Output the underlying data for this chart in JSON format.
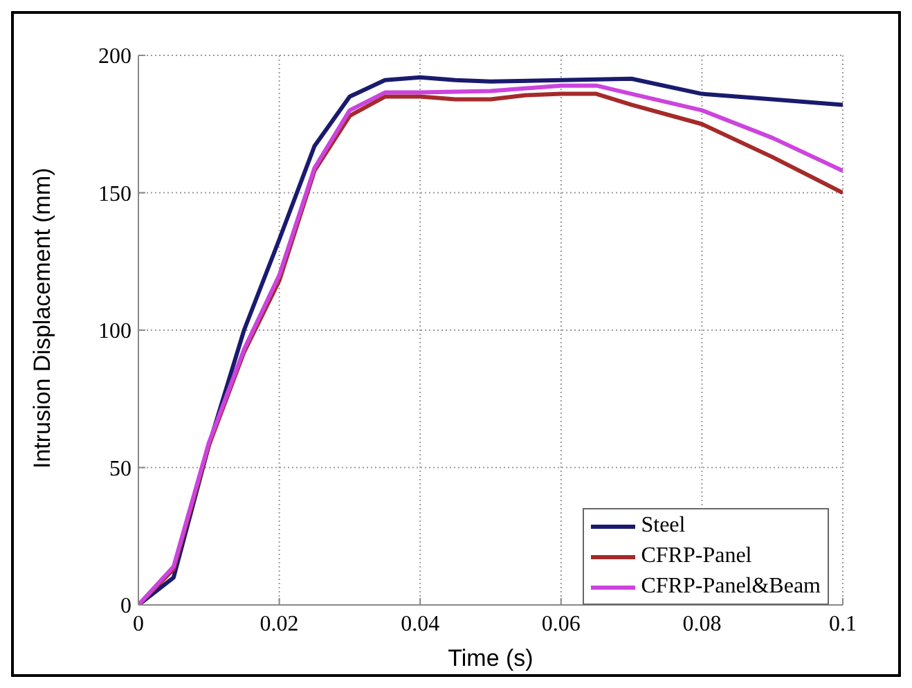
{
  "chart_data": {
    "type": "line",
    "xlabel": "Time (s)",
    "ylabel": "Intrusion Displacement (mm)",
    "xlim": [
      0,
      0.1
    ],
    "xticks": [
      0,
      0.02,
      0.04,
      0.06,
      0.08,
      0.1
    ],
    "ylim": [
      0,
      200
    ],
    "yticks": [
      0,
      50,
      100,
      150,
      200
    ],
    "grid": true,
    "legend": "bottom right",
    "marker": "none",
    "line_style": "solid",
    "series": [
      {
        "name": "Steel",
        "color": "#1a1a6e",
        "x": [
          0,
          0.005,
          0.01,
          0.015,
          0.02,
          0.025,
          0.03,
          0.035,
          0.04,
          0.045,
          0.05,
          0.06,
          0.07,
          0.08,
          0.09,
          0.1
        ],
        "values": [
          0,
          10,
          58,
          100,
          133,
          167,
          185,
          191,
          192,
          191,
          190.5,
          191,
          191.5,
          186,
          184,
          182
        ]
      },
      {
        "name": "CFRP-Panel",
        "color": "#a52a2a",
        "x": [
          0,
          0.005,
          0.01,
          0.015,
          0.02,
          0.025,
          0.03,
          0.035,
          0.04,
          0.045,
          0.05,
          0.055,
          0.06,
          0.065,
          0.07,
          0.08,
          0.09,
          0.1
        ],
        "values": [
          0,
          13,
          58,
          92,
          118,
          158,
          178,
          185,
          185,
          184,
          184,
          185.5,
          186,
          186,
          182,
          175,
          163,
          150
        ]
      },
      {
        "name": "CFRP-Panel&Beam",
        "color": "#cc44dd",
        "x": [
          0,
          0.005,
          0.01,
          0.015,
          0.02,
          0.025,
          0.03,
          0.035,
          0.04,
          0.05,
          0.06,
          0.065,
          0.07,
          0.08,
          0.09,
          0.1
        ],
        "values": [
          0,
          14,
          59,
          93,
          120,
          159,
          180,
          186.5,
          186.5,
          187,
          189,
          189,
          186,
          180,
          170,
          158
        ]
      }
    ]
  }
}
